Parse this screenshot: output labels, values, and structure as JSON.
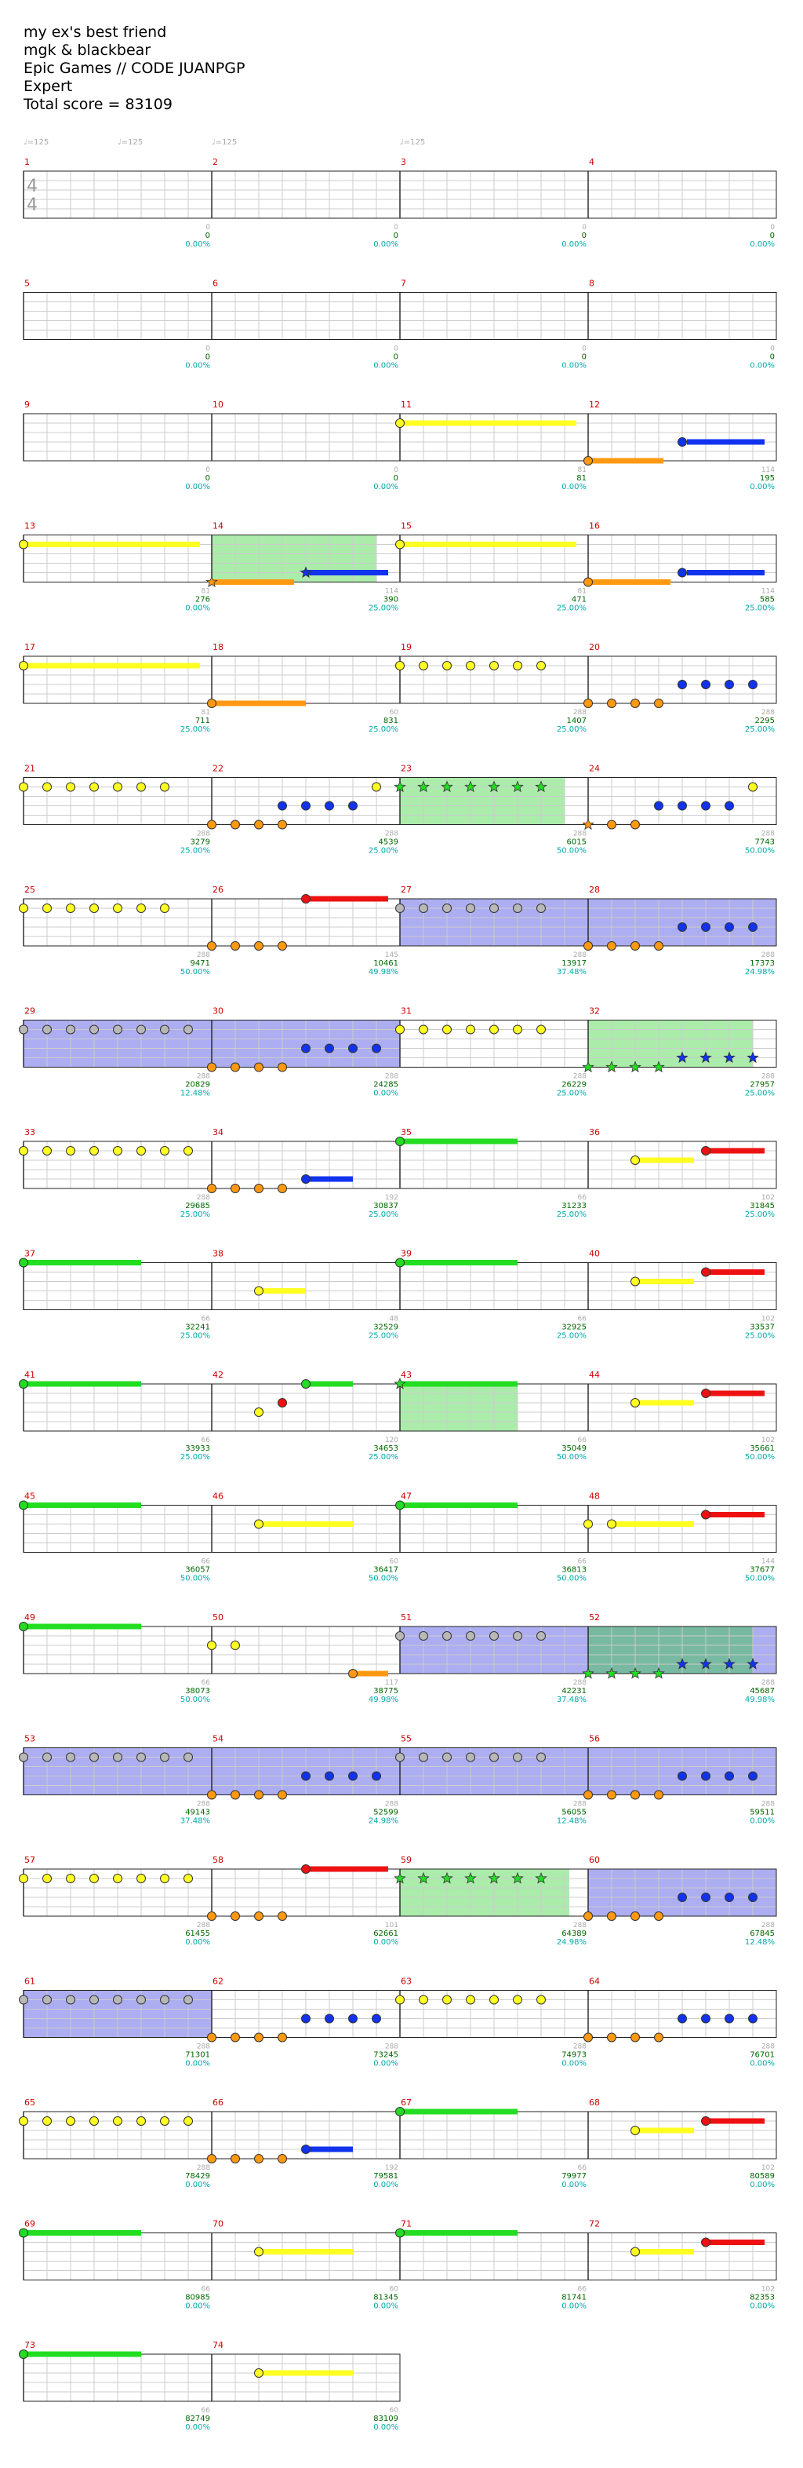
{
  "header": {
    "title": "my ex's best friend",
    "artist": "mgk & blackbear",
    "charter": "Epic Games // CODE JUANPGP",
    "difficulty": "Expert",
    "total_score": "Total score = 83109"
  },
  "tempo_label": "♩=125",
  "time_signature": [
    "4",
    "4"
  ],
  "colors": {
    "green": "#22dd22",
    "red": "#ee1111",
    "yellow": "#ffff22",
    "blue": "#1133ee",
    "orange": "#ff9911",
    "measure_number": "#cc0000",
    "score": "#006600",
    "percent": "#00aaaa",
    "grid": "#cccccc",
    "star_power": "#22cc22",
    "overdrive": "#3333dd"
  },
  "measures": [
    {
      "num": "1",
      "seg": "0",
      "score": "0",
      "pct": "0.00%"
    },
    {
      "num": "2",
      "seg": "0",
      "score": "0",
      "pct": "0.00%"
    },
    {
      "num": "3",
      "seg": "0",
      "score": "0",
      "pct": "0.00%"
    },
    {
      "num": "4",
      "seg": "0",
      "score": "0",
      "pct": "0.00%"
    },
    {
      "num": "5",
      "seg": "0",
      "score": "0",
      "pct": "0.00%"
    },
    {
      "num": "6",
      "seg": "0",
      "score": "0",
      "pct": "0.00%"
    },
    {
      "num": "7",
      "seg": "0",
      "score": "0",
      "pct": "0.00%"
    },
    {
      "num": "8",
      "seg": "0",
      "score": "0",
      "pct": "0.00%"
    },
    {
      "num": "9",
      "seg": "0",
      "score": "0",
      "pct": "0.00%"
    },
    {
      "num": "10",
      "seg": "0",
      "score": "0",
      "pct": "0.00%"
    },
    {
      "num": "11",
      "seg": "81",
      "score": "81",
      "pct": "0.00%"
    },
    {
      "num": "12",
      "seg": "114",
      "score": "195",
      "pct": "0.00%"
    },
    {
      "num": "13",
      "seg": "81",
      "score": "276",
      "pct": "0.00%"
    },
    {
      "num": "14",
      "seg": "114",
      "score": "390",
      "pct": "25.00%"
    },
    {
      "num": "15",
      "seg": "81",
      "score": "471",
      "pct": "25.00%"
    },
    {
      "num": "16",
      "seg": "114",
      "score": "585",
      "pct": "25.00%"
    },
    {
      "num": "17",
      "seg": "81",
      "score": "711",
      "pct": "25.00%"
    },
    {
      "num": "18",
      "seg": "60",
      "score": "831",
      "pct": "25.00%"
    },
    {
      "num": "19",
      "seg": "288",
      "score": "1407",
      "pct": "25.00%"
    },
    {
      "num": "20",
      "seg": "288",
      "score": "2295",
      "pct": "25.00%"
    },
    {
      "num": "21",
      "seg": "288",
      "score": "3279",
      "pct": "25.00%"
    },
    {
      "num": "22",
      "seg": "288",
      "score": "4539",
      "pct": "25.00%"
    },
    {
      "num": "23",
      "seg": "288",
      "score": "6015",
      "pct": "50.00%"
    },
    {
      "num": "24",
      "seg": "288",
      "score": "7743",
      "pct": "50.00%"
    },
    {
      "num": "25",
      "seg": "288",
      "score": "9471",
      "pct": "50.00%"
    },
    {
      "num": "26",
      "seg": "145",
      "score": "10461",
      "pct": "49.98%"
    },
    {
      "num": "27",
      "seg": "288",
      "score": "13917",
      "pct": "37.48%"
    },
    {
      "num": "28",
      "seg": "288",
      "score": "17373",
      "pct": "24.98%"
    },
    {
      "num": "29",
      "seg": "288",
      "score": "20829",
      "pct": "12.48%"
    },
    {
      "num": "30",
      "seg": "288",
      "score": "24285",
      "pct": "0.00%"
    },
    {
      "num": "31",
      "seg": "288",
      "score": "26229",
      "pct": "25.00%"
    },
    {
      "num": "32",
      "seg": "288",
      "score": "27957",
      "pct": "25.00%"
    },
    {
      "num": "33",
      "seg": "288",
      "score": "29685",
      "pct": "25.00%"
    },
    {
      "num": "34",
      "seg": "192",
      "score": "30837",
      "pct": "25.00%"
    },
    {
      "num": "35",
      "seg": "66",
      "score": "31233",
      "pct": "25.00%"
    },
    {
      "num": "36",
      "seg": "102",
      "score": "31845",
      "pct": "25.00%"
    },
    {
      "num": "37",
      "seg": "66",
      "score": "32241",
      "pct": "25.00%"
    },
    {
      "num": "38",
      "seg": "48",
      "score": "32529",
      "pct": "25.00%"
    },
    {
      "num": "39",
      "seg": "66",
      "score": "32925",
      "pct": "25.00%"
    },
    {
      "num": "40",
      "seg": "102",
      "score": "33537",
      "pct": "25.00%"
    },
    {
      "num": "41",
      "seg": "66",
      "score": "33933",
      "pct": "25.00%"
    },
    {
      "num": "42",
      "seg": "120",
      "score": "34653",
      "pct": "25.00%"
    },
    {
      "num": "43",
      "seg": "66",
      "score": "35049",
      "pct": "50.00%"
    },
    {
      "num": "44",
      "seg": "102",
      "score": "35661",
      "pct": "50.00%"
    },
    {
      "num": "45",
      "seg": "66",
      "score": "36057",
      "pct": "50.00%"
    },
    {
      "num": "46",
      "seg": "60",
      "score": "36417",
      "pct": "50.00%"
    },
    {
      "num": "47",
      "seg": "66",
      "score": "36813",
      "pct": "50.00%"
    },
    {
      "num": "48",
      "seg": "144",
      "score": "37677",
      "pct": "50.00%"
    },
    {
      "num": "49",
      "seg": "66",
      "score": "38073",
      "pct": "50.00%"
    },
    {
      "num": "50",
      "seg": "117",
      "score": "38775",
      "pct": "49.98%"
    },
    {
      "num": "51",
      "seg": "288",
      "score": "42231",
      "pct": "37.48%"
    },
    {
      "num": "52",
      "seg": "288",
      "score": "45687",
      "pct": "49.98%"
    },
    {
      "num": "53",
      "seg": "288",
      "score": "49143",
      "pct": "37.48%"
    },
    {
      "num": "54",
      "seg": "288",
      "score": "52599",
      "pct": "24.98%"
    },
    {
      "num": "55",
      "seg": "288",
      "score": "56055",
      "pct": "12.48%"
    },
    {
      "num": "56",
      "seg": "288",
      "score": "59511",
      "pct": "0.00%"
    },
    {
      "num": "57",
      "seg": "288",
      "score": "61455",
      "pct": "0.00%"
    },
    {
      "num": "58",
      "seg": "101",
      "score": "62661",
      "pct": "0.00%"
    },
    {
      "num": "59",
      "seg": "288",
      "score": "64389",
      "pct": "24.98%"
    },
    {
      "num": "60",
      "seg": "288",
      "score": "67845",
      "pct": "12.48%"
    },
    {
      "num": "61",
      "seg": "288",
      "score": "71301",
      "pct": "0.00%"
    },
    {
      "num": "62",
      "seg": "288",
      "score": "73245",
      "pct": "0.00%"
    },
    {
      "num": "63",
      "seg": "288",
      "score": "74973",
      "pct": "0.00%"
    },
    {
      "num": "64",
      "seg": "288",
      "score": "76701",
      "pct": "0.00%"
    },
    {
      "num": "65",
      "seg": "288",
      "score": "78429",
      "pct": "0.00%"
    },
    {
      "num": "66",
      "seg": "192",
      "score": "79581",
      "pct": "0.00%"
    },
    {
      "num": "67",
      "seg": "66",
      "score": "79977",
      "pct": "0.00%"
    },
    {
      "num": "68",
      "seg": "102",
      "score": "80589",
      "pct": "0.00%"
    },
    {
      "num": "69",
      "seg": "66",
      "score": "80985",
      "pct": "0.00%"
    },
    {
      "num": "70",
      "seg": "60",
      "score": "81345",
      "pct": "0.00%"
    },
    {
      "num": "71",
      "seg": "66",
      "score": "81741",
      "pct": "0.00%"
    },
    {
      "num": "72",
      "seg": "102",
      "score": "82353",
      "pct": "0.00%"
    },
    {
      "num": "73",
      "seg": "66",
      "score": "82749",
      "pct": "0.00%"
    },
    {
      "num": "74",
      "seg": "60",
      "score": "83109",
      "pct": "0.00%"
    }
  ]
}
